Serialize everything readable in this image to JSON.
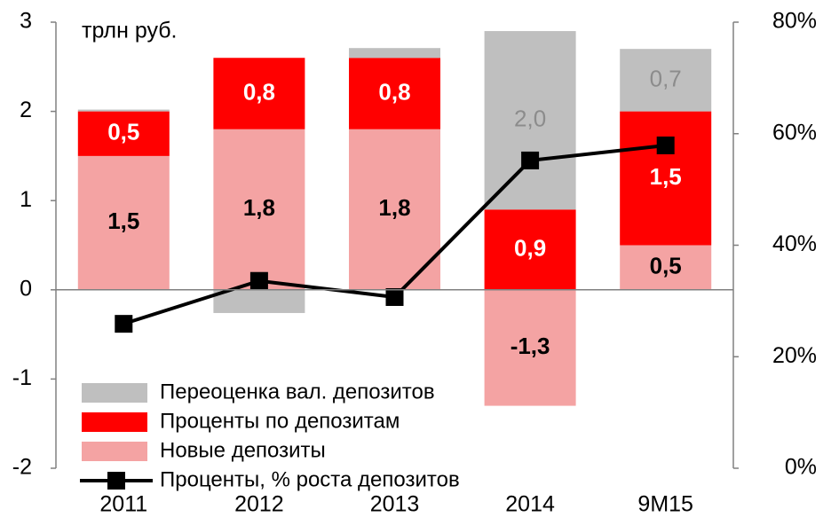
{
  "chart_data": {
    "type": "bar",
    "annotation": "трлн руб.",
    "categories": [
      "2011",
      "2012",
      "2013",
      "2014",
      "9M15"
    ],
    "series": [
      {
        "name": "Новые депозиты",
        "color": "#f4a3a3",
        "label_color": "#000000",
        "label_bold": true,
        "values": [
          1.5,
          1.8,
          1.8,
          -1.3,
          0.5
        ],
        "value_labels": [
          "1,5",
          "1,8",
          "1,8",
          "-1,3",
          "0,5"
        ]
      },
      {
        "name": "Проценты по депозитам",
        "color": "#ff0000",
        "label_color": "#ffffff",
        "label_bold": true,
        "values": [
          0.5,
          0.8,
          0.8,
          0.9,
          1.5
        ],
        "value_labels": [
          "0,5",
          "0,8",
          "0,8",
          "0,9",
          "1,5"
        ]
      },
      {
        "name": "Переоценка вал. депозитов",
        "color": "#bfbfbf",
        "label_color": "#8c8c8c",
        "label_bold": false,
        "values": [
          0.02,
          -0.26,
          0.11,
          2.0,
          0.7
        ],
        "value_labels": [
          null,
          null,
          null,
          "2,0",
          "0,7"
        ]
      },
      {
        "name": "Проценты, % роста депозитов",
        "type": "line",
        "axis": "y2",
        "color": "#000000",
        "values": [
          25.9,
          33.6,
          30.7,
          55.2,
          57.9
        ]
      }
    ],
    "ylim": [
      -2,
      3
    ],
    "yticks": [
      -2,
      -1,
      0,
      1,
      2,
      3
    ],
    "y2lim": [
      0,
      80
    ],
    "y2ticks": [
      {
        "value": 0,
        "label": "0%"
      },
      {
        "value": 20,
        "label": "20%"
      },
      {
        "value": 40,
        "label": "40%"
      },
      {
        "value": 60,
        "label": "60%"
      },
      {
        "value": 80,
        "label": "80%"
      }
    ]
  }
}
